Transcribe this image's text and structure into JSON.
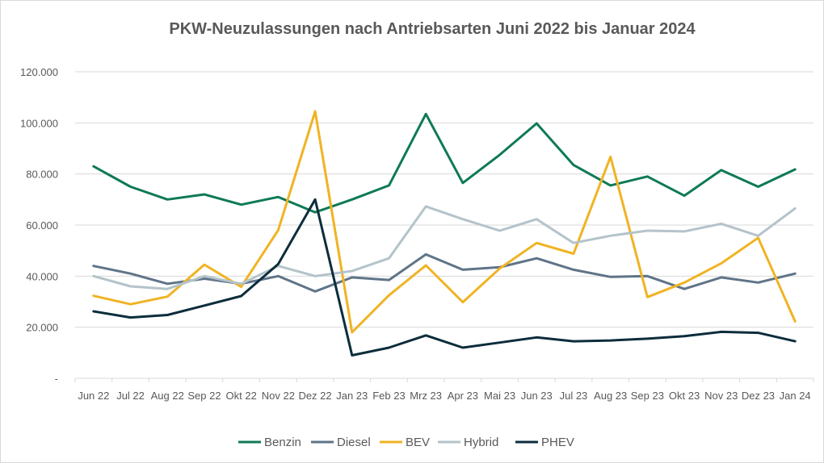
{
  "chart_data": {
    "type": "line",
    "title": "PKW-Neuzulassungen nach Antriebsarten Juni 2022 bis Januar 2024",
    "xlabel": "",
    "ylabel": "",
    "categories": [
      "Jun 22",
      "Jul 22",
      "Aug 22",
      "Sep 22",
      "Okt 22",
      "Nov 22",
      "Dez 22",
      "Jan 23",
      "Feb 23",
      "Mrz 23",
      "Apr 23",
      "Mai 23",
      "Jun 23",
      "Jul 23",
      "Aug 23",
      "Sep 23",
      "Okt 23",
      "Nov 23",
      "Dez 23",
      "Jan 24"
    ],
    "ylim": [
      0,
      120000
    ],
    "yticks": [
      {
        "value": 0,
        "label": "-"
      },
      {
        "value": 20000,
        "label": "20.000"
      },
      {
        "value": 40000,
        "label": "40.000"
      },
      {
        "value": 60000,
        "label": "60.000"
      },
      {
        "value": 80000,
        "label": "80.000"
      },
      {
        "value": 100000,
        "label": "100.000"
      },
      {
        "value": 120000,
        "label": "120.000"
      }
    ],
    "grid": true,
    "legend_position": "bottom",
    "series": [
      {
        "name": "Benzin",
        "color": "#0e7a55",
        "values": [
          83000,
          75000,
          70000,
          72000,
          68000,
          71000,
          65000,
          70000,
          75500,
          103500,
          76500,
          87500,
          99800,
          83500,
          75500,
          79000,
          71500,
          81500,
          75000,
          81800
        ]
      },
      {
        "name": "Diesel",
        "color": "#5f7488",
        "values": [
          44000,
          41000,
          37000,
          39000,
          37000,
          40000,
          34000,
          39500,
          38500,
          48500,
          42500,
          43500,
          47000,
          42500,
          39700,
          40000,
          35000,
          39500,
          37500,
          41000
        ]
      },
      {
        "name": "BEV",
        "color": "#f0b323",
        "values": [
          32300,
          29000,
          32000,
          44500,
          35800,
          58000,
          104500,
          18000,
          32500,
          44200,
          29800,
          43000,
          53000,
          48800,
          86700,
          31800,
          37500,
          45000,
          55000,
          22300
        ]
      },
      {
        "name": "Hybrid",
        "color": "#b4c3ca",
        "values": [
          40000,
          36000,
          35000,
          40000,
          37000,
          44000,
          40000,
          42000,
          47000,
          67300,
          62300,
          57800,
          62300,
          53000,
          55800,
          57800,
          57500,
          60500,
          55800,
          66500
        ]
      },
      {
        "name": "PHEV",
        "color": "#0c2d3c",
        "values": [
          26200,
          23800,
          24800,
          28500,
          32200,
          44700,
          70000,
          9000,
          12000,
          16800,
          12000,
          14000,
          16000,
          14500,
          14800,
          15500,
          16500,
          18200,
          17800,
          14500
        ]
      }
    ]
  }
}
